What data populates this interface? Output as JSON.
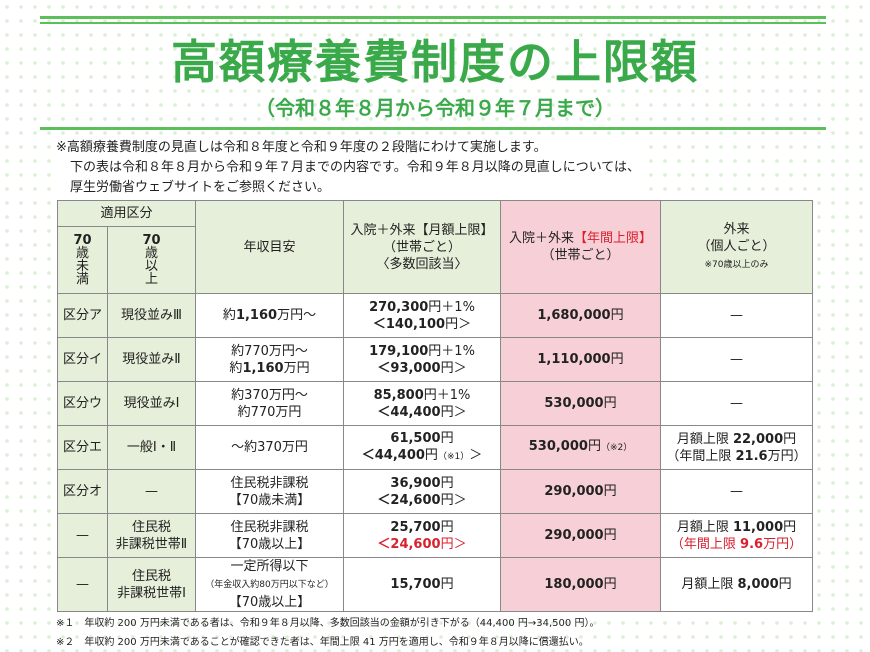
{
  "header": {
    "title": "高額療養費制度の上限額",
    "subtitle": "（令和８年８月から令和９年７月まで）"
  },
  "notes": [
    "※高額療養費制度の見直しは令和８年度と令和９年度の２段階にわけて実施します。",
    "下の表は令和８年８月から令和９年７月までの内容です。令和９年８月以降の見直しについては、",
    "厚生労働省ウェブサイトをご参照ください。"
  ],
  "table": {
    "head": {
      "group": [
        [
          "適用区分"
        ]
      ],
      "under70": [
        [
          "70"
        ],
        [
          "歳"
        ],
        [
          "未"
        ],
        [
          "満"
        ]
      ],
      "over70": [
        [
          "70"
        ],
        [
          "歳"
        ],
        [
          "以"
        ],
        [
          "上"
        ]
      ],
      "income": [
        [
          "年収目安"
        ]
      ],
      "monthly": [
        [
          "入院＋外来【月額上限】"
        ],
        [
          "（世帯ごと）"
        ],
        [
          "〈多数回該当〉"
        ]
      ],
      "annual": [
        [
          "入院＋外来",
          "【年間上限】"
        ],
        [
          "（世帯ごと）"
        ]
      ],
      "outpatient": [
        [
          "外来"
        ],
        [
          "（個人ごと）"
        ],
        [
          "※70歳以上のみ"
        ]
      ]
    },
    "rows": [
      [
        [
          [
            "区分ア"
          ]
        ],
        [
          [
            "現役並みⅢ"
          ]
        ],
        [
          [
            "約",
            "1,160",
            "万円〜"
          ]
        ],
        [
          [
            "270,300",
            "円＋1%"
          ],
          [
            "＜140,100",
            "円＞"
          ]
        ],
        [
          [
            "1,680,000",
            "円"
          ]
        ],
        [
          [
            "—"
          ]
        ]
      ],
      [
        [
          [
            "区分イ"
          ]
        ],
        [
          [
            "現役並みⅡ"
          ]
        ],
        [
          [
            "約770万円〜"
          ],
          [
            "約",
            "1,160",
            "万円"
          ]
        ],
        [
          [
            "179,100",
            "円＋1%"
          ],
          [
            "＜93,000",
            "円＞"
          ]
        ],
        [
          [
            "1,110,000",
            "円"
          ]
        ],
        [
          [
            "—"
          ]
        ]
      ],
      [
        [
          [
            "区分ウ"
          ]
        ],
        [
          [
            "現役並みⅠ"
          ]
        ],
        [
          [
            "約370万円〜"
          ],
          [
            "約770万円"
          ]
        ],
        [
          [
            "85,800",
            "円＋1%"
          ],
          [
            "＜44,400",
            "円＞"
          ]
        ],
        [
          [
            "530,000",
            "円"
          ]
        ],
        [
          [
            "—"
          ]
        ]
      ],
      [
        [
          [
            "区分エ"
          ]
        ],
        [
          [
            "一般Ⅰ・Ⅱ"
          ]
        ],
        [
          [
            "〜約370万円"
          ]
        ],
        [
          [
            "61,500",
            "円"
          ],
          [
            "＜44,400",
            "円",
            "（※1）",
            "＞"
          ]
        ],
        [
          [
            "530,000",
            "円",
            "（※2）"
          ]
        ],
        [
          [
            "月額上限 ",
            "22,000",
            "円"
          ],
          [
            "（年間上限 ",
            "21.6",
            "万円）"
          ]
        ]
      ],
      [
        [
          [
            "区分オ"
          ]
        ],
        [
          [
            "—"
          ]
        ],
        [
          [
            "住民税非課税"
          ],
          [
            "【70歳未満】"
          ]
        ],
        [
          [
            "36,900",
            "円"
          ],
          [
            "＜24,600",
            "円＞"
          ]
        ],
        [
          [
            "290,000",
            "円"
          ]
        ],
        [
          [
            "—"
          ]
        ]
      ],
      [
        [
          [
            "—"
          ]
        ],
        [
          [
            "住民税"
          ],
          [
            "非課税世帯Ⅱ"
          ]
        ],
        [
          [
            "住民税非課税"
          ],
          [
            "【70歳以上】"
          ]
        ],
        [
          [
            "25,700",
            "円"
          ],
          [
            "＜24,600",
            "円＞"
          ]
        ],
        [
          [
            "290,000",
            "円"
          ]
        ],
        [
          [
            "月額上限 ",
            "11,000",
            "円"
          ],
          [
            "（年間上限 ",
            "9.6",
            "万円）"
          ]
        ]
      ],
      [
        [
          [
            "—"
          ]
        ],
        [
          [
            "住民税"
          ],
          [
            "非課税世帯Ⅰ"
          ]
        ],
        [
          [
            "一定所得以下"
          ],
          [
            "（年金収入約80万円以下など）"
          ],
          [
            "【70歳以上】"
          ]
        ],
        [
          [
            "15,700",
            "円"
          ]
        ],
        [
          [
            "180,000",
            "円"
          ]
        ],
        [
          [
            "月額上限 ",
            "8,000",
            "円"
          ]
        ]
      ]
    ]
  },
  "footnotes": [
    "※１　年収約 200 万円未満である者は、令和９年８月以降、多数回該当の金額が引き下がる（44,400 円→34,500 円）。",
    "※２　年収約 200 万円未満であることが確認できた者は、年間上限 41 万円を適用し、令和９年８月以降に償還払い。"
  ]
}
